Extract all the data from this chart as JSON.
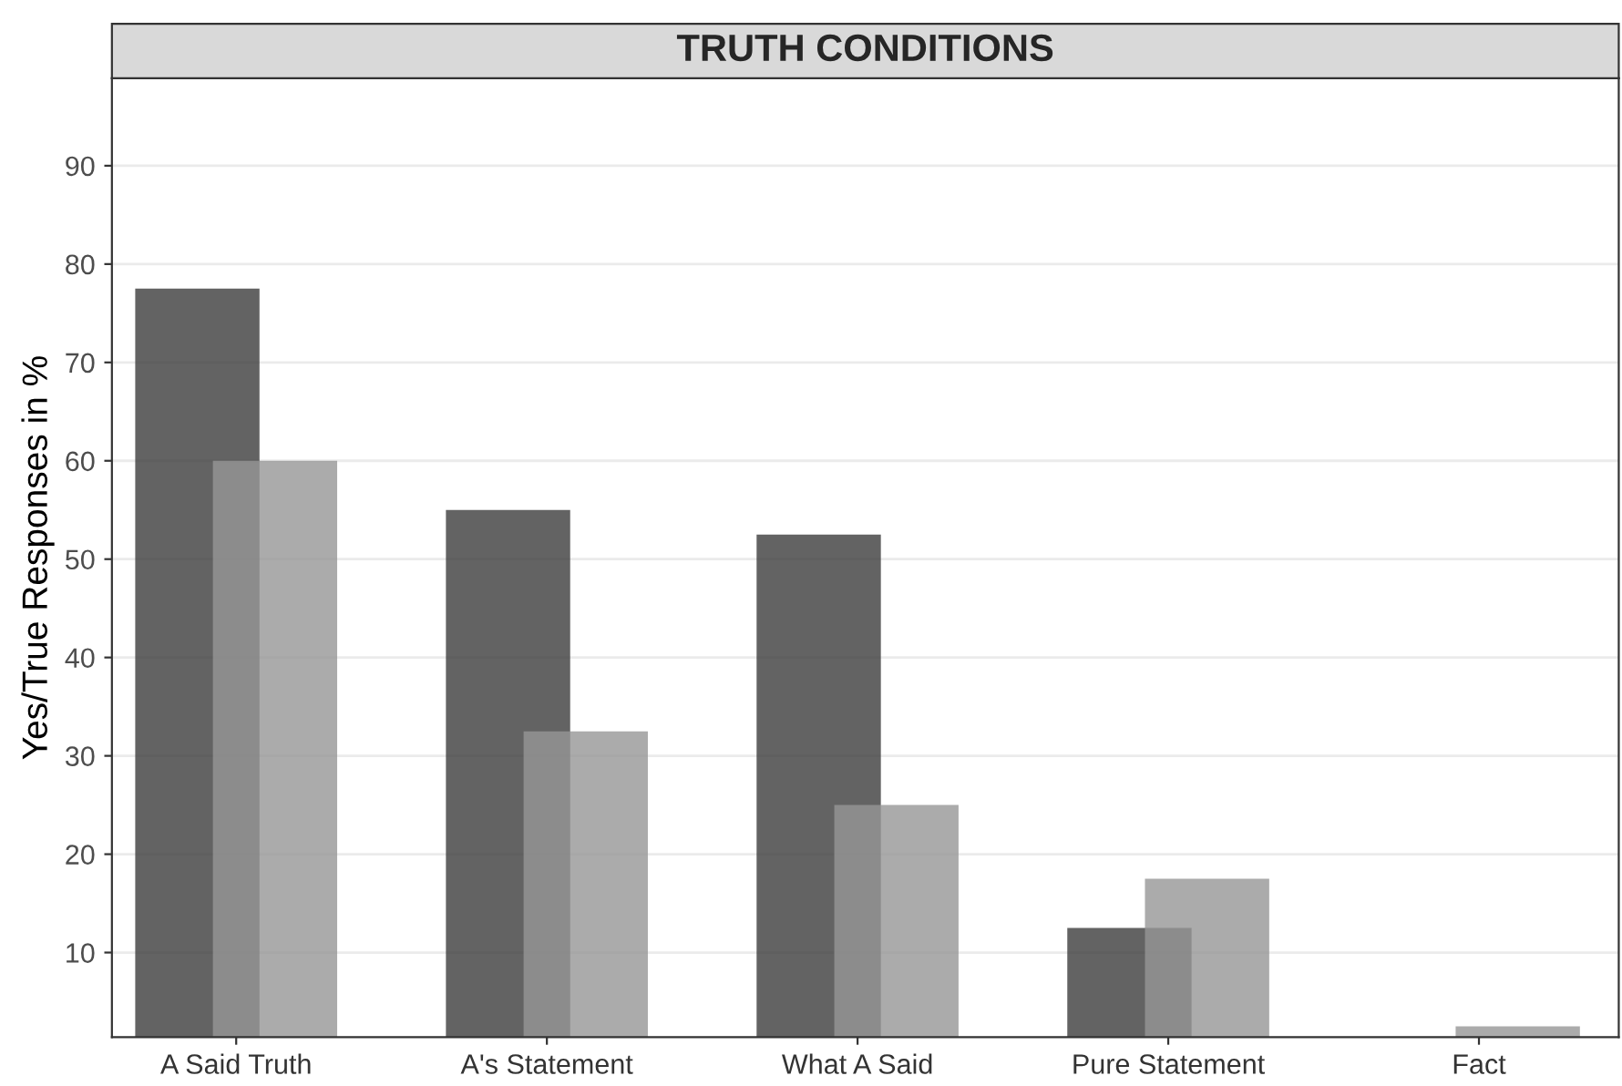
{
  "chart_data": {
    "type": "bar",
    "title": "TRUTH CONDITIONS",
    "ylabel": "Yes/True Responses in %",
    "categories": [
      "A Said Truth",
      "A's Statement",
      "What A Said",
      "Pure Statement",
      "Fact"
    ],
    "series": [
      {
        "color": "#636363",
        "values": [
          77.5,
          55,
          52.5,
          12.5,
          null
        ]
      },
      {
        "color": "#ababab",
        "values": [
          60,
          32.5,
          25,
          17.5,
          2.5
        ]
      }
    ],
    "ylim": [
      1.4,
      98.9
    ],
    "yticks": [
      10,
      20,
      30,
      40,
      50,
      60,
      70,
      80,
      90
    ],
    "grid": "y",
    "legend": false
  }
}
